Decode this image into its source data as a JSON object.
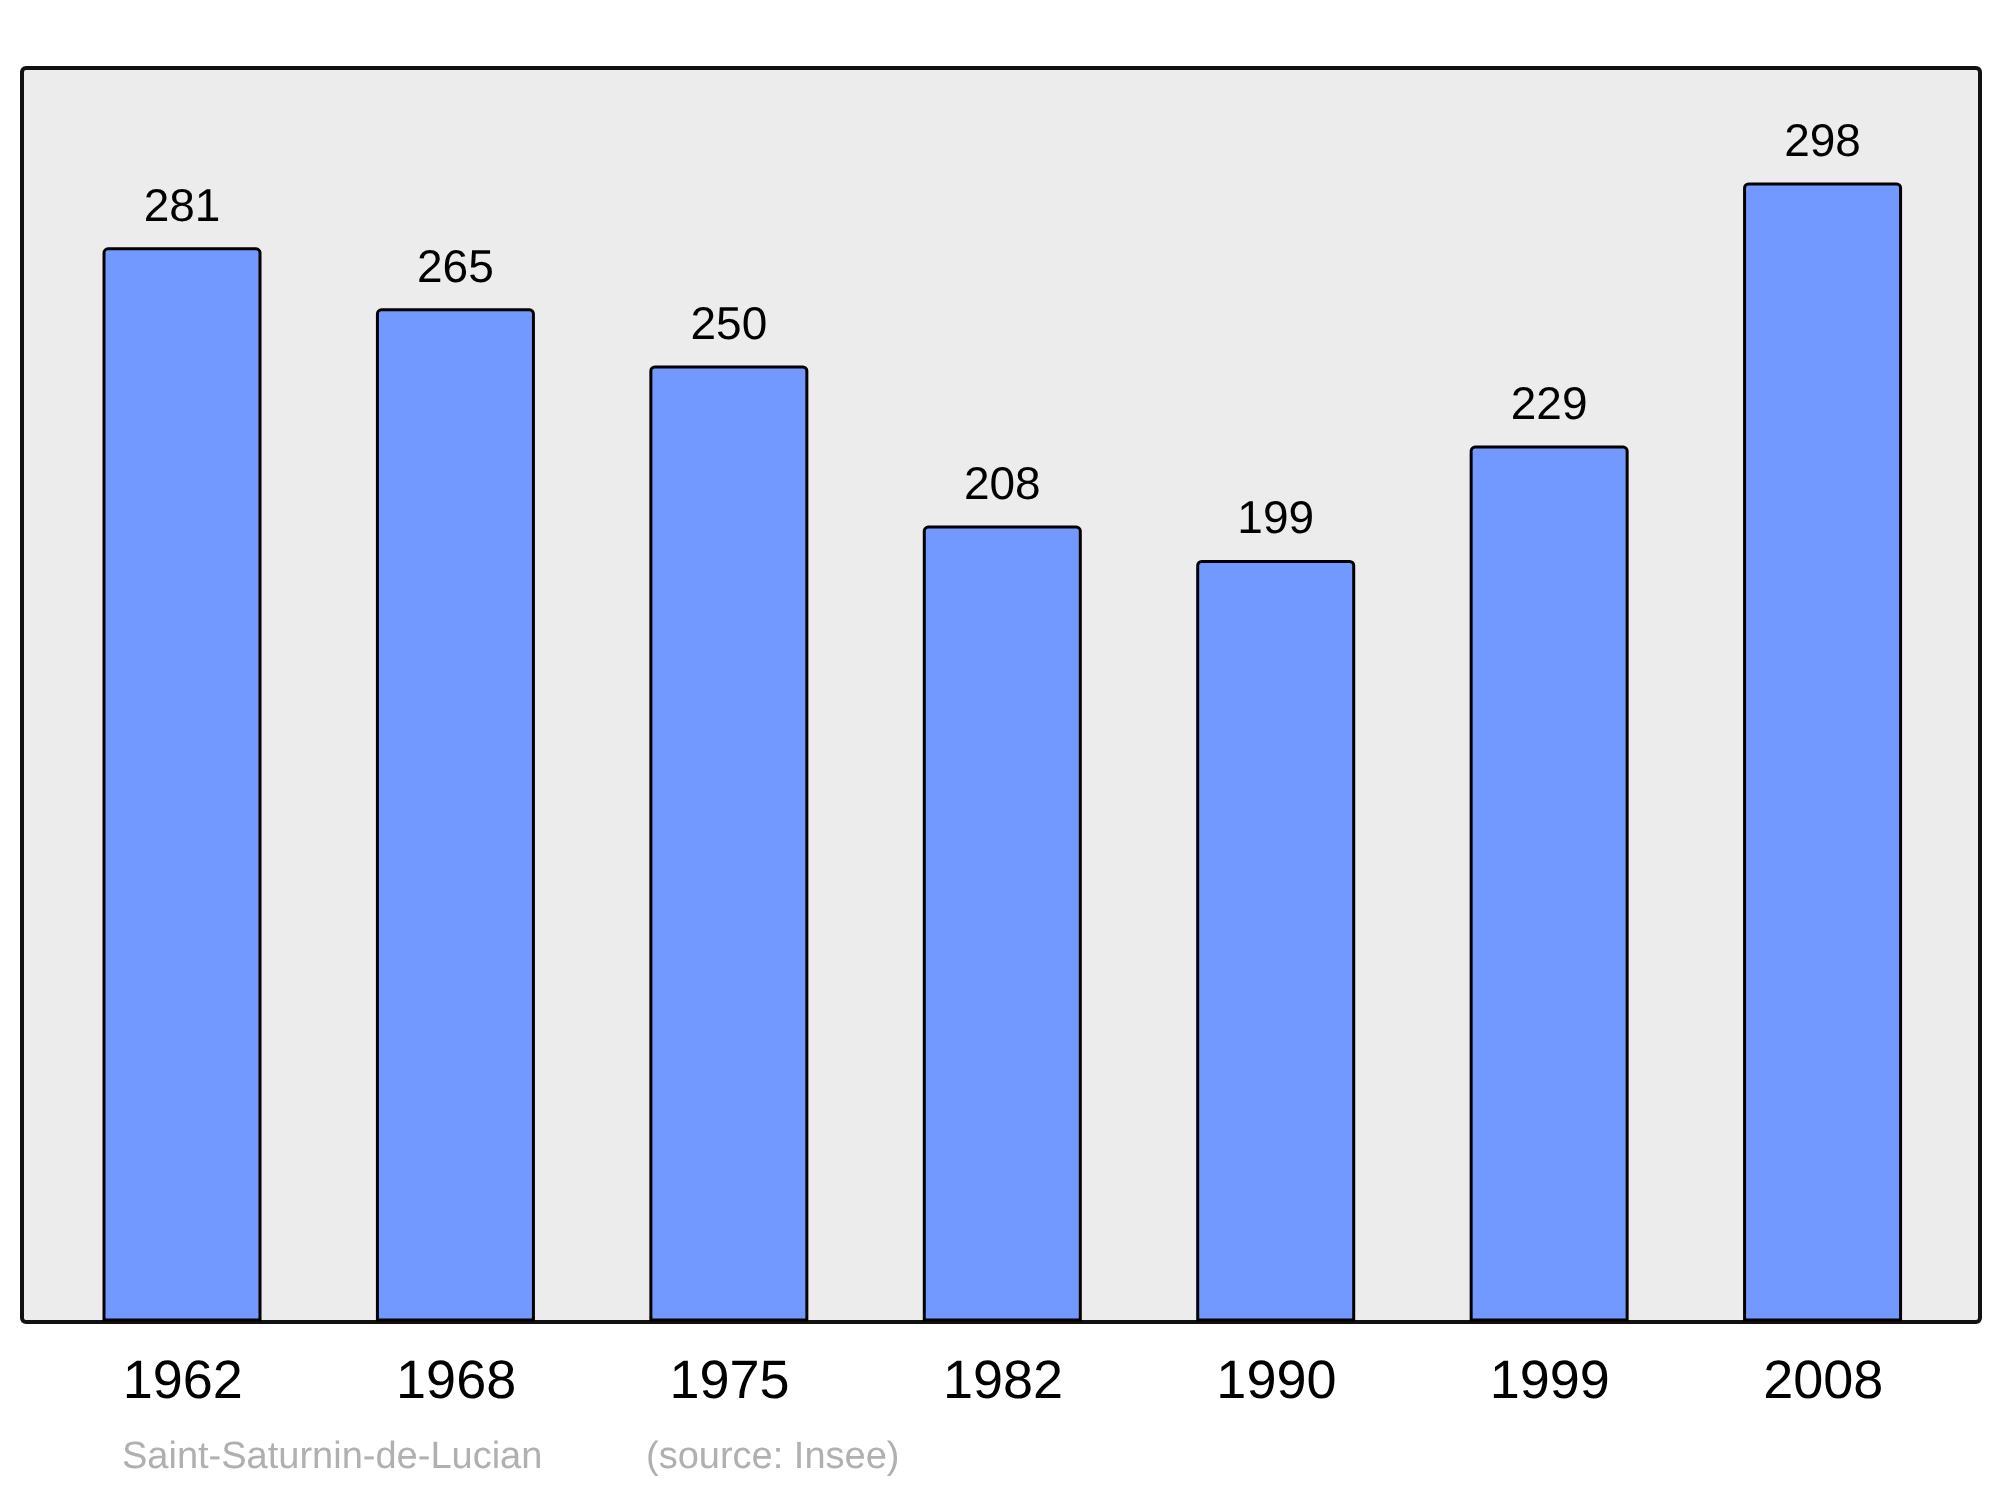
{
  "chart_data": {
    "type": "bar",
    "categories": [
      "1962",
      "1968",
      "1975",
      "1982",
      "1990",
      "1999",
      "2008"
    ],
    "values": [
      281,
      265,
      250,
      208,
      199,
      229,
      298
    ],
    "color": "#7299ff",
    "data_labels": true,
    "annotations": [
      "Saint-Saturnin-de-Lucian",
      "(source: Insee)"
    ]
  }
}
